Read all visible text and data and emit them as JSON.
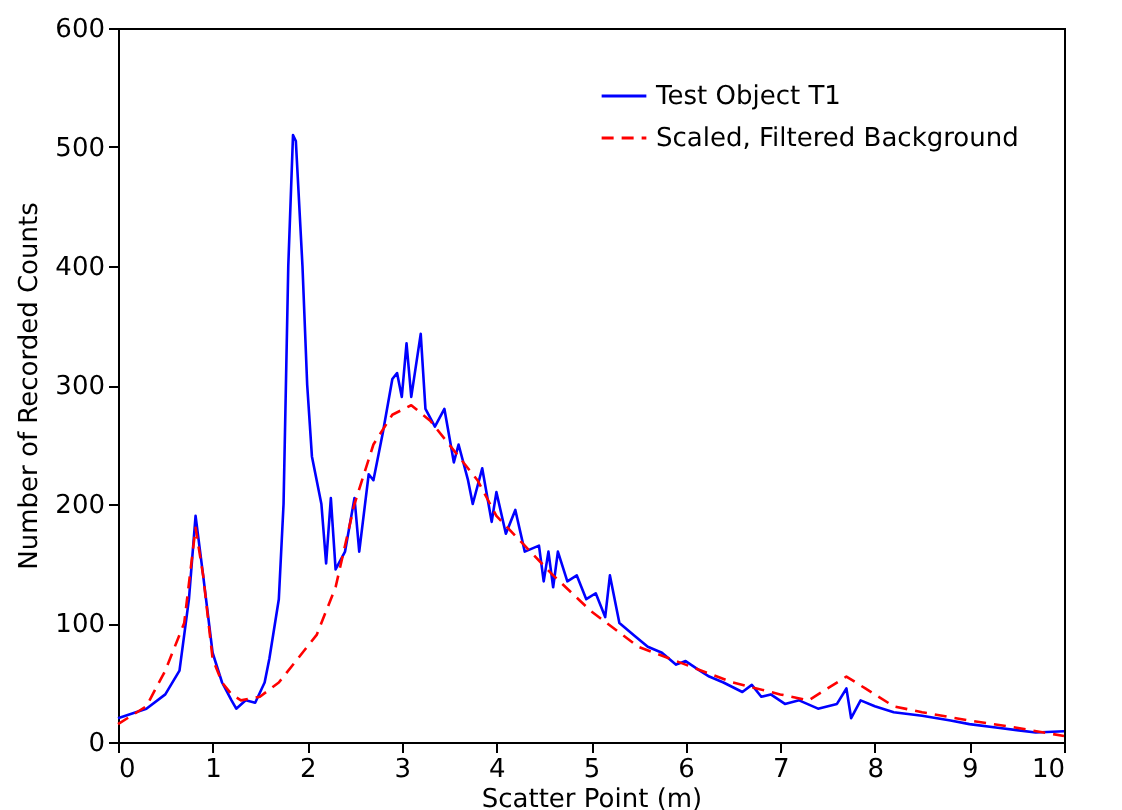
{
  "chart_data": {
    "type": "line",
    "xlabel": "Scatter Point (m)",
    "ylabel": "Number of Recorded Counts",
    "xlim": [
      0,
      10
    ],
    "xticks": [
      0,
      1,
      2,
      3,
      4,
      5,
      6,
      7,
      8,
      9,
      10
    ],
    "ylim": [
      0,
      600
    ],
    "yticks": [
      0,
      100,
      200,
      300,
      400,
      500,
      600
    ],
    "grid": false,
    "legend": "top right",
    "series": [
      {
        "name": "Test Object T1",
        "color": "#0000ff",
        "line_style": "solid",
        "x": [
          0,
          0.3,
          0.5,
          0.65,
          0.75,
          0.82,
          0.9,
          1.0,
          1.1,
          1.2,
          1.25,
          1.35,
          1.45,
          1.55,
          1.6,
          1.7,
          1.75,
          1.8,
          1.85,
          1.88,
          1.95,
          2.0,
          2.05,
          2.15,
          2.2,
          2.25,
          2.3,
          2.4,
          2.5,
          2.55,
          2.65,
          2.7,
          2.8,
          2.9,
          2.95,
          3.0,
          3.05,
          3.1,
          3.2,
          3.25,
          3.35,
          3.45,
          3.55,
          3.6,
          3.7,
          3.75,
          3.85,
          3.95,
          4.0,
          4.1,
          4.2,
          4.3,
          4.45,
          4.5,
          4.55,
          4.6,
          4.65,
          4.75,
          4.85,
          4.95,
          5.05,
          5.15,
          5.2,
          5.3,
          5.45,
          5.6,
          5.75,
          5.9,
          6.0,
          6.15,
          6.25,
          6.4,
          6.6,
          6.7,
          6.8,
          6.9,
          7.05,
          7.2,
          7.4,
          7.6,
          7.7,
          7.75,
          7.85,
          8.0,
          8.2,
          8.5,
          8.8,
          9.0,
          9.3,
          9.5,
          9.7,
          10
        ],
        "values": [
          20,
          28,
          40,
          60,
          120,
          190,
          140,
          75,
          50,
          35,
          28,
          35,
          33,
          50,
          70,
          120,
          200,
          400,
          510,
          505,
          400,
          300,
          240,
          200,
          150,
          205,
          145,
          160,
          205,
          160,
          225,
          220,
          260,
          305,
          310,
          290,
          335,
          290,
          343,
          280,
          265,
          280,
          235,
          250,
          220,
          200,
          230,
          185,
          210,
          175,
          195,
          160,
          165,
          135,
          160,
          130,
          160,
          135,
          140,
          120,
          125,
          105,
          140,
          100,
          90,
          80,
          75,
          65,
          68,
          60,
          55,
          50,
          42,
          48,
          38,
          40,
          32,
          35,
          28,
          32,
          45,
          20,
          35,
          30,
          25,
          22,
          18,
          15,
          12,
          10,
          8,
          9
        ]
      },
      {
        "name": "Scaled, Filtered Background",
        "color": "#ff0000",
        "line_style": "dashed",
        "x": [
          0,
          0.3,
          0.5,
          0.7,
          0.82,
          0.9,
          1.0,
          1.1,
          1.2,
          1.3,
          1.5,
          1.7,
          1.9,
          2.1,
          2.3,
          2.5,
          2.7,
          2.9,
          3.1,
          3.3,
          3.5,
          3.8,
          4.0,
          4.3,
          4.6,
          4.8,
          5.0,
          5.5,
          6.0,
          6.5,
          7.0,
          7.3,
          7.5,
          7.7,
          7.9,
          8.2,
          8.5,
          9.0,
          9.5,
          10
        ],
        "values": [
          15,
          30,
          60,
          100,
          180,
          140,
          70,
          50,
          40,
          35,
          38,
          50,
          70,
          90,
          130,
          200,
          250,
          275,
          283,
          270,
          250,
          220,
          190,
          165,
          140,
          125,
          110,
          80,
          65,
          50,
          40,
          35,
          45,
          55,
          45,
          30,
          25,
          18,
          12,
          5
        ]
      }
    ]
  }
}
